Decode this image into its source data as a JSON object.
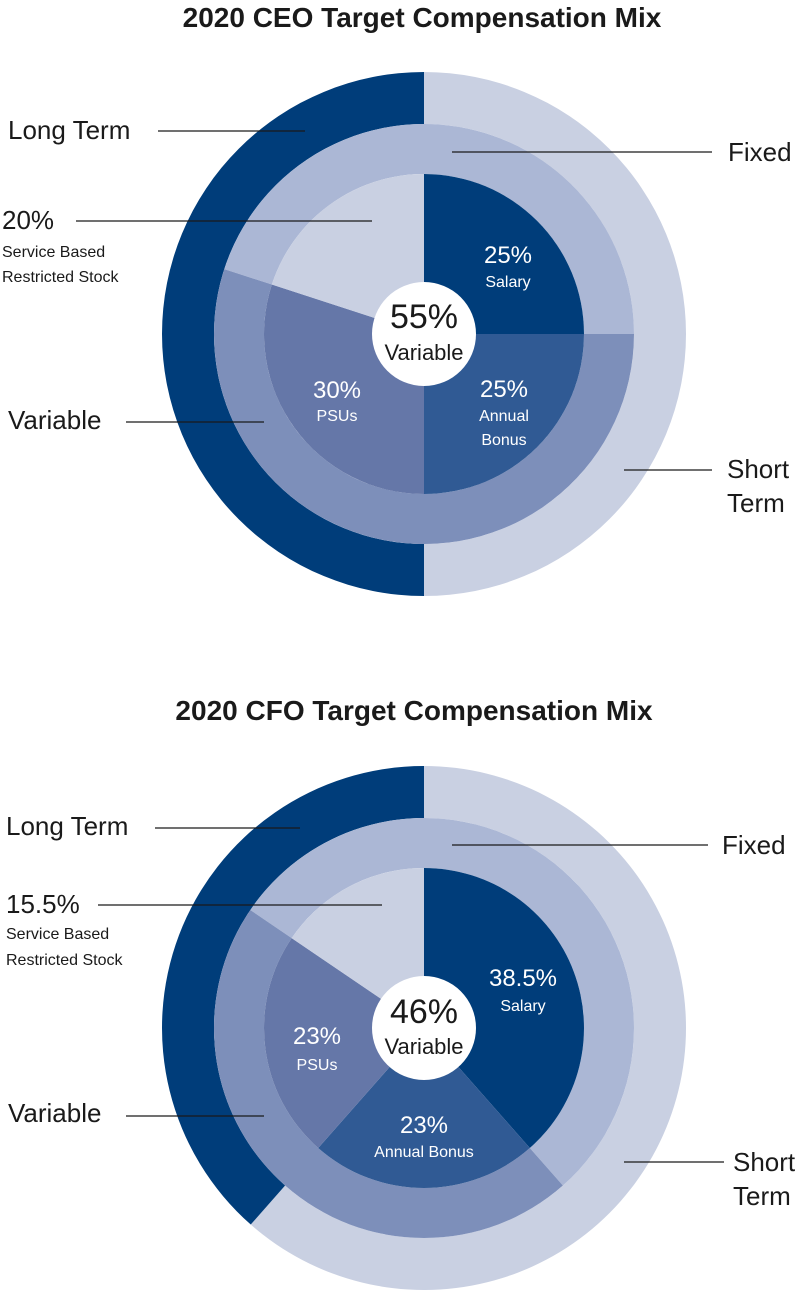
{
  "colors": {
    "outer_long_term": "#003D7A",
    "outer_short_term": "#C9D0E2",
    "middle_fixed": "#ABB7D5",
    "middle_variable": "#7D8FBA",
    "inner_salary": "#003D7A",
    "inner_bonus": "#305A94",
    "inner_psus": "#6577A8",
    "inner_restricted": "#C9D0E2",
    "center": "#ffffff"
  },
  "chart_data": [
    {
      "type": "pie",
      "title": "2020 CEO Target Compensation Mix",
      "center": {
        "value": "55%",
        "label": "Variable"
      },
      "rings": {
        "outer": [
          {
            "name": "Short Term",
            "value": 50
          },
          {
            "name": "Long Term",
            "value": 50
          }
        ],
        "middle": [
          {
            "name": "Fixed",
            "value": 45
          },
          {
            "name": "Variable",
            "value": 55
          }
        ],
        "inner": [
          {
            "name": "Salary",
            "value": 25
          },
          {
            "name": "Annual Bonus",
            "value": 25
          },
          {
            "name": "PSUs",
            "value": 30
          },
          {
            "name": "Service Based Restricted Stock",
            "value": 20
          }
        ]
      },
      "texts": {
        "salary_pct": "25%",
        "salary_name": "Salary",
        "bonus_pct": "25%",
        "bonus_name_1": "Annual",
        "bonus_name_2": "Bonus",
        "psus_pct": "30%",
        "psus_name": "PSUs",
        "restricted_pct": "20%",
        "restricted_name_1": "Service Based",
        "restricted_name_2": "Restricted Stock",
        "long_term": "Long Term",
        "fixed": "Fixed",
        "variable": "Variable",
        "short_term_1": "Short",
        "short_term_2": "Term"
      }
    },
    {
      "type": "pie",
      "title": "2020 CFO Target Compensation Mix",
      "center": {
        "value": "46%",
        "label": "Variable"
      },
      "rings": {
        "outer": [
          {
            "name": "Short Term",
            "value": 61.5
          },
          {
            "name": "Long Term",
            "value": 38.5
          }
        ],
        "middle": [
          {
            "name": "Fixed",
            "value": 54
          },
          {
            "name": "Variable",
            "value": 46
          }
        ],
        "inner": [
          {
            "name": "Salary",
            "value": 38.5
          },
          {
            "name": "Annual Bonus",
            "value": 23
          },
          {
            "name": "PSUs",
            "value": 23
          },
          {
            "name": "Service Based Restricted Stock",
            "value": 15.5
          }
        ]
      },
      "texts": {
        "salary_pct": "38.5%",
        "salary_name": "Salary",
        "bonus_pct": "23%",
        "bonus_name": "Annual Bonus",
        "psus_pct": "23%",
        "psus_name": "PSUs",
        "restricted_pct": "15.5%",
        "restricted_name_1": "Service Based",
        "restricted_name_2": "Restricted Stock",
        "long_term": "Long Term",
        "fixed": "Fixed",
        "variable": "Variable",
        "short_term_1": "Short",
        "short_term_2": "Term"
      }
    }
  ]
}
